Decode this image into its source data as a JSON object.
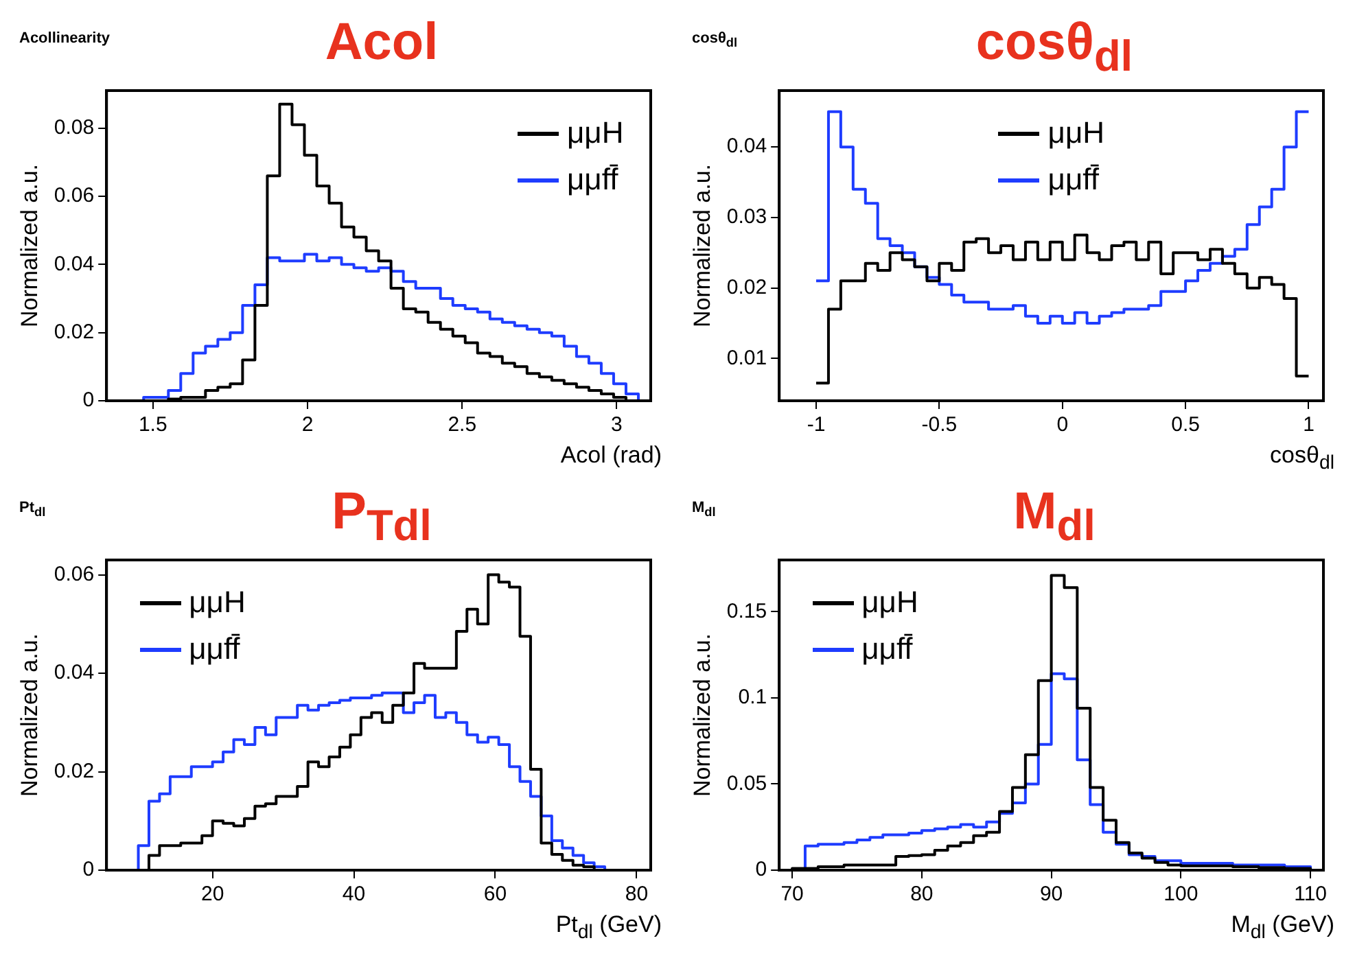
{
  "chart_data": [
    {
      "type": "histogram",
      "title": "Acol",
      "subtitle": "Acollinearity",
      "xlabel": "Acol (rad)",
      "ylabel": "Normalized a.u.",
      "bins": [
        1.35,
        1.39,
        1.43,
        1.47,
        1.51,
        1.55,
        1.59,
        1.63,
        1.67,
        1.71,
        1.75,
        1.79,
        1.83,
        1.87,
        1.91,
        1.95,
        1.99,
        2.03,
        2.07,
        2.11,
        2.15,
        2.19,
        2.23,
        2.27,
        2.31,
        2.35,
        2.39,
        2.43,
        2.47,
        2.51,
        2.55,
        2.59,
        2.63,
        2.67,
        2.71,
        2.75,
        2.79,
        2.83,
        2.87,
        2.91,
        2.95,
        2.99,
        3.03,
        3.07,
        3.11
      ],
      "series": [
        {
          "name": "μμH",
          "color": "#000000",
          "values": [
            0,
            0,
            0,
            0,
            0,
            0.0005,
            0.001,
            0.001,
            0.003,
            0.004,
            0.005,
            0.012,
            0.028,
            0.066,
            0.087,
            0.081,
            0.072,
            0.063,
            0.058,
            0.051,
            0.048,
            0.044,
            0.041,
            0.033,
            0.027,
            0.026,
            0.023,
            0.021,
            0.019,
            0.017,
            0.014,
            0.013,
            0.011,
            0.01,
            0.008,
            0.007,
            0.006,
            0.005,
            0.004,
            0.003,
            0.002,
            0.001,
            0,
            0
          ]
        },
        {
          "name": "μμff̄",
          "color": "#1e3cff",
          "values": [
            0,
            0,
            0,
            0.001,
            0.001,
            0.003,
            0.008,
            0.014,
            0.016,
            0.018,
            0.02,
            0.028,
            0.034,
            0.042,
            0.041,
            0.041,
            0.043,
            0.041,
            0.042,
            0.04,
            0.039,
            0.038,
            0.039,
            0.038,
            0.035,
            0.033,
            0.033,
            0.03,
            0.028,
            0.027,
            0.026,
            0.024,
            0.023,
            0.022,
            0.021,
            0.02,
            0.019,
            0.016,
            0.013,
            0.011,
            0.008,
            0.005,
            0.002,
            0
          ]
        }
      ],
      "xlim": [
        1.35,
        3.11
      ],
      "ylim": [
        0,
        0.091
      ],
      "xticks": [
        1.5,
        2,
        2.5,
        3
      ],
      "yticks": [
        0,
        0.02,
        0.04,
        0.06,
        0.08
      ],
      "grid": false,
      "legend": "top right"
    },
    {
      "type": "histogram",
      "title": "cosθ$_{dl}$",
      "subtitle": "cosθ$_{dl}$",
      "xlabel": "cosθ$_{dl}$",
      "ylabel": "Normalized a.u.",
      "bins": [
        -1,
        -0.95,
        -0.9,
        -0.85,
        -0.8,
        -0.75,
        -0.7,
        -0.65,
        -0.6,
        -0.55,
        -0.5,
        -0.45,
        -0.4,
        -0.35,
        -0.3,
        -0.25,
        -0.2,
        -0.15,
        -0.1,
        -0.05,
        0,
        0.05,
        0.1,
        0.15,
        0.2,
        0.25,
        0.3,
        0.35,
        0.4,
        0.45,
        0.5,
        0.55,
        0.6,
        0.65,
        0.7,
        0.75,
        0.8,
        0.85,
        0.9,
        0.95,
        1
      ],
      "series": [
        {
          "name": "μμH",
          "color": "#000000",
          "values": [
            0.0065,
            0.017,
            0.021,
            0.021,
            0.0235,
            0.0225,
            0.025,
            0.024,
            0.023,
            0.021,
            0.0235,
            0.0225,
            0.0265,
            0.027,
            0.025,
            0.026,
            0.024,
            0.0265,
            0.024,
            0.0265,
            0.024,
            0.0275,
            0.025,
            0.024,
            0.026,
            0.0265,
            0.024,
            0.0265,
            0.022,
            0.025,
            0.025,
            0.024,
            0.0255,
            0.0235,
            0.022,
            0.02,
            0.0215,
            0.0205,
            0.0185,
            0.0075
          ]
        },
        {
          "name": "μμff̄",
          "color": "#1e3cff",
          "values": [
            0.021,
            0.045,
            0.04,
            0.034,
            0.032,
            0.027,
            0.026,
            0.025,
            0.023,
            0.0215,
            0.0205,
            0.019,
            0.018,
            0.018,
            0.017,
            0.017,
            0.0175,
            0.016,
            0.015,
            0.016,
            0.015,
            0.0165,
            0.015,
            0.016,
            0.0165,
            0.017,
            0.017,
            0.0175,
            0.0195,
            0.0195,
            0.021,
            0.0225,
            0.0235,
            0.0245,
            0.0255,
            0.029,
            0.0315,
            0.034,
            0.04,
            0.045
          ]
        }
      ],
      "xlim": [
        -1.15,
        1.06
      ],
      "ylim": [
        0.004,
        0.048
      ],
      "xticks": [
        -1,
        -0.5,
        0,
        0.5,
        1
      ],
      "yticks": [
        0.01,
        0.02,
        0.03,
        0.04
      ],
      "grid": false,
      "legend": "top"
    },
    {
      "type": "histogram",
      "title": "P$_{Tdl}$",
      "subtitle": "Pt$_{dl}$",
      "xlabel": "Pt$_{dl}$ (GeV)",
      "ylabel": "Normalized a.u.",
      "bins": [
        5,
        6.5,
        8,
        9.5,
        11,
        12.5,
        14,
        15.5,
        17,
        18.5,
        20,
        21.5,
        23,
        24.5,
        26,
        27.5,
        29,
        30.5,
        32,
        33.5,
        35,
        36.5,
        38,
        39.5,
        41,
        42.5,
        44,
        45.5,
        47,
        48.5,
        50,
        51.5,
        53,
        54.5,
        56,
        57.5,
        59,
        60.5,
        62,
        63.5,
        65,
        66.5,
        68,
        69.5,
        71,
        72.5,
        74,
        75.5,
        77,
        78.5,
        80,
        81.5
      ],
      "series": [
        {
          "name": "μμH",
          "color": "#000000",
          "values": [
            0,
            0,
            0,
            0,
            0.003,
            0.005,
            0.005,
            0.0055,
            0.0055,
            0.007,
            0.01,
            0.0095,
            0.009,
            0.0105,
            0.013,
            0.0135,
            0.015,
            0.015,
            0.017,
            0.022,
            0.021,
            0.023,
            0.025,
            0.0275,
            0.031,
            0.032,
            0.03,
            0.0335,
            0.036,
            0.042,
            0.041,
            0.041,
            0.041,
            0.0485,
            0.053,
            0.05,
            0.06,
            0.0585,
            0.0575,
            0.0475,
            0.0205,
            0.0055,
            0.0032,
            0.002,
            0.001,
            0.0007,
            0,
            0,
            0,
            0,
            0
          ]
        },
        {
          "name": "μμff̄",
          "color": "#1e3cff",
          "values": [
            0,
            0,
            0,
            0.005,
            0.014,
            0.0155,
            0.019,
            0.019,
            0.021,
            0.021,
            0.022,
            0.024,
            0.0265,
            0.0255,
            0.029,
            0.0275,
            0.031,
            0.031,
            0.0335,
            0.0325,
            0.0335,
            0.034,
            0.0345,
            0.035,
            0.035,
            0.0355,
            0.036,
            0.036,
            0.032,
            0.034,
            0.0355,
            0.031,
            0.032,
            0.03,
            0.0275,
            0.026,
            0.027,
            0.0255,
            0.021,
            0.018,
            0.015,
            0.011,
            0.006,
            0.0045,
            0.003,
            0.0015,
            0.0007,
            0,
            0,
            0,
            0
          ]
        }
      ],
      "xlim": [
        5,
        82
      ],
      "ylim": [
        0,
        0.063
      ],
      "xticks": [
        20,
        40,
        60,
        80
      ],
      "yticks": [
        0,
        0.02,
        0.04,
        0.06
      ],
      "grid": false,
      "legend": "top left"
    },
    {
      "type": "histogram",
      "title": "M$_{dl}$",
      "subtitle": "M$_{dl}$",
      "xlabel": "M$_{dl}$ (GeV)",
      "ylabel": "Normalized a.u.",
      "bins": [
        69,
        70,
        71,
        72,
        73,
        74,
        75,
        76,
        77,
        78,
        79,
        80,
        81,
        82,
        83,
        84,
        85,
        86,
        87,
        88,
        89,
        90,
        91,
        92,
        93,
        94,
        95,
        96,
        97,
        98,
        99,
        100,
        101,
        102,
        103,
        104,
        105,
        106,
        107,
        108,
        109,
        110,
        111
      ],
      "series": [
        {
          "name": "μμH",
          "color": "#000000",
          "values": [
            0,
            0.001,
            0.001,
            0.002,
            0.002,
            0.003,
            0.003,
            0.003,
            0.003,
            0.008,
            0.0085,
            0.009,
            0.0115,
            0.014,
            0.016,
            0.02,
            0.022,
            0.034,
            0.048,
            0.067,
            0.11,
            0.171,
            0.164,
            0.094,
            0.048,
            0.029,
            0.016,
            0.01,
            0.007,
            0.0045,
            0.003,
            0.0025,
            0.0025,
            0.0025,
            0.0025,
            0.002,
            0.002,
            0.0015,
            0.0015,
            0.001,
            0.001,
            0
          ]
        },
        {
          "name": "μμff̄",
          "color": "#1e3cff",
          "values": [
            0,
            0,
            0.014,
            0.015,
            0.015,
            0.016,
            0.0175,
            0.019,
            0.0205,
            0.0205,
            0.0215,
            0.023,
            0.024,
            0.025,
            0.0265,
            0.025,
            0.028,
            0.033,
            0.039,
            0.05,
            0.073,
            0.114,
            0.111,
            0.064,
            0.038,
            0.022,
            0.015,
            0.009,
            0.008,
            0.0055,
            0.0055,
            0.004,
            0.004,
            0.004,
            0.004,
            0.003,
            0.003,
            0.003,
            0.003,
            0.002,
            0.002,
            0
          ]
        }
      ],
      "xlim": [
        69,
        111
      ],
      "ylim": [
        0,
        0.18
      ],
      "xticks": [
        70,
        80,
        90,
        100,
        110
      ],
      "yticks": [
        0,
        0.05,
        0.1,
        0.15
      ],
      "grid": false,
      "legend": "top left"
    }
  ]
}
